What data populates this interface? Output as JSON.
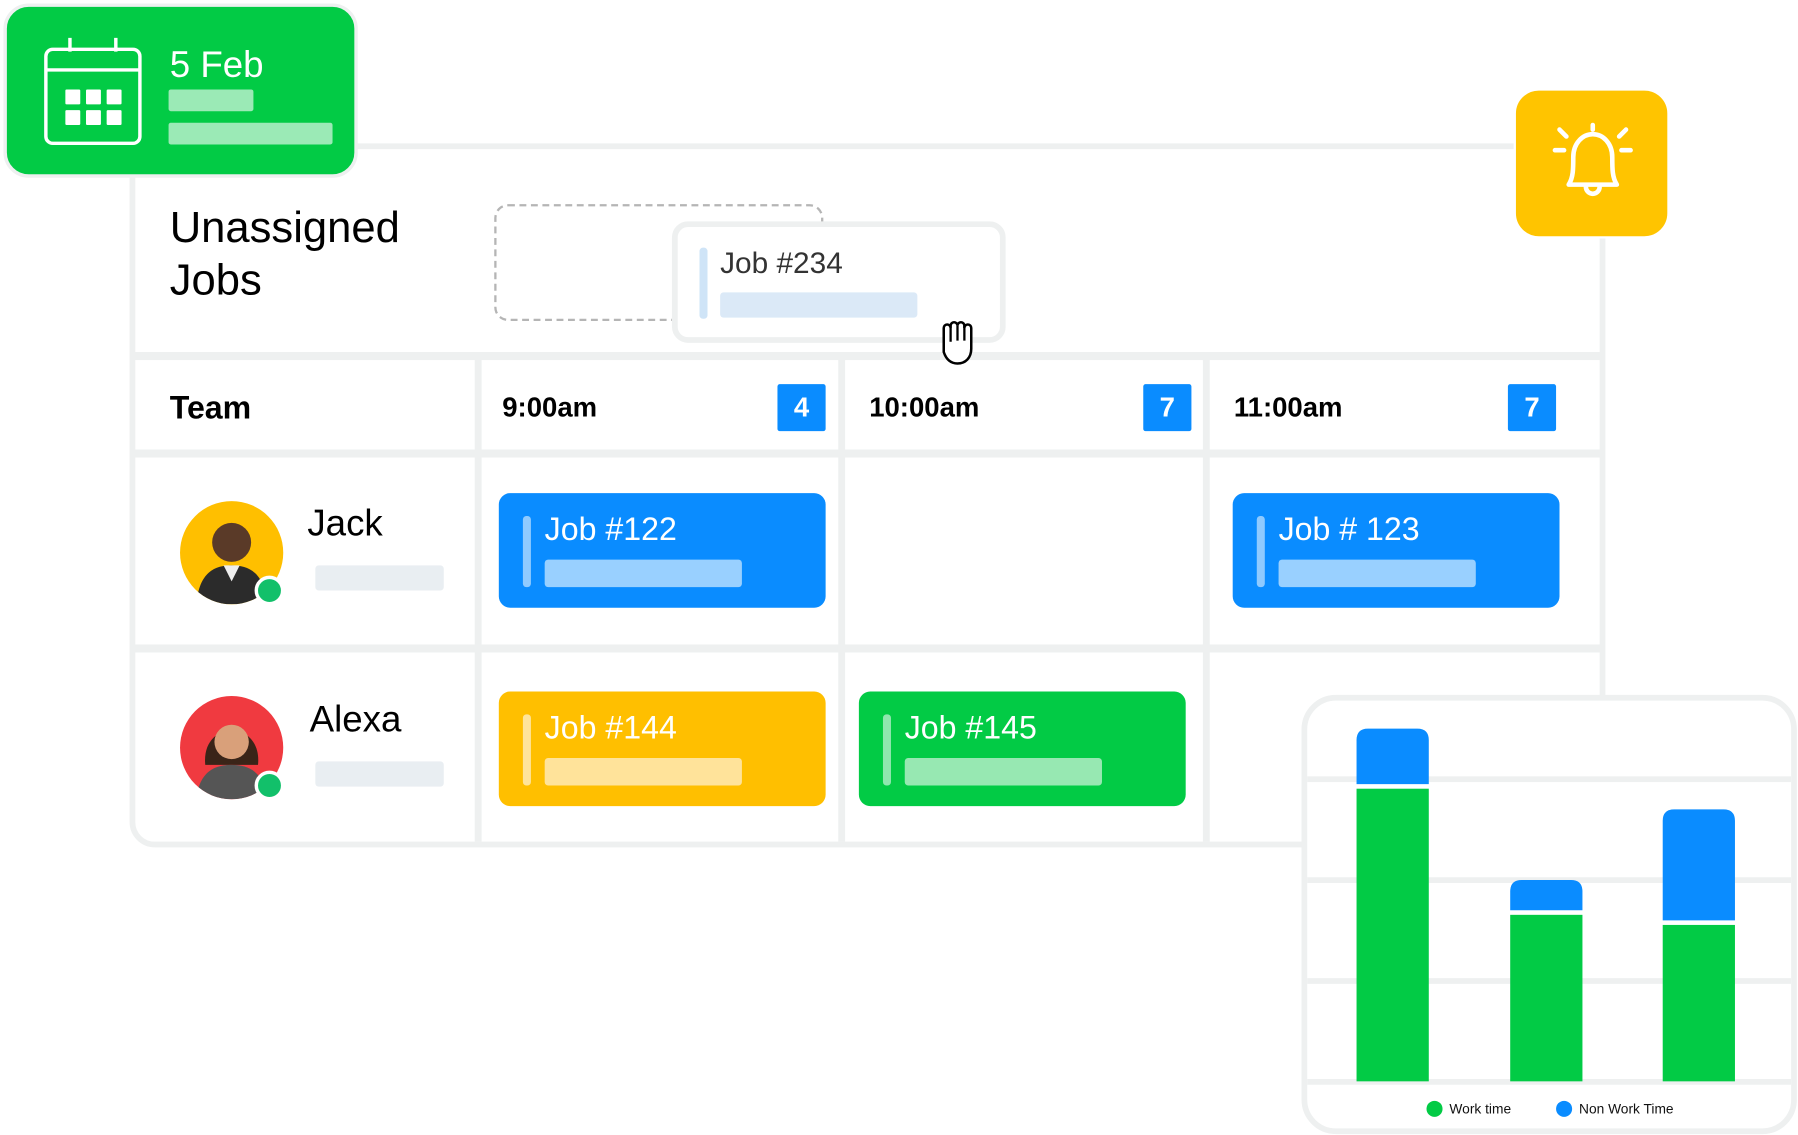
{
  "date_card": {
    "date": "5 Feb",
    "icon": "calendar-icon"
  },
  "notification": {
    "icon": "bell-icon"
  },
  "unassigned": {
    "title_line1": "Unassigned",
    "title_line2": "Jobs",
    "dragged_job": "Job #234",
    "cursor_icon": "grab-hand-icon"
  },
  "schedule": {
    "team_header": "Team",
    "slots": [
      {
        "time": "9:00am",
        "count": "4"
      },
      {
        "time": "10:00am",
        "count": "7"
      },
      {
        "time": "11:00am",
        "count": "7"
      }
    ],
    "members": [
      {
        "name": "Jack",
        "status": "online",
        "jobs": [
          {
            "slot": 0,
            "label": "Job #122",
            "color": "#0a8cff"
          },
          {
            "slot": 2,
            "label": "Job # 123",
            "color": "#0a8cff"
          }
        ]
      },
      {
        "name": "Alexa",
        "status": "online",
        "jobs": [
          {
            "slot": 0,
            "label": "Job #144",
            "color": "#ffbf00"
          },
          {
            "slot": 1,
            "label": "Job #145",
            "color": "#02cb45"
          }
        ]
      }
    ]
  },
  "colors": {
    "green": "#02cb45",
    "blue": "#0a8cff",
    "yellow": "#ffc400",
    "online": "#12c06a"
  },
  "chart_data": {
    "type": "bar",
    "stacked": true,
    "categories": [
      "",
      "",
      ""
    ],
    "series": [
      {
        "name": "Work time",
        "color": "#02cb45",
        "values": [
          2.9,
          1.65,
          1.55
        ]
      },
      {
        "name": "Non Work Time",
        "color": "#0a8cff",
        "values": [
          0.55,
          0.3,
          1.1
        ]
      }
    ],
    "ylim": [
      0,
      3.6
    ],
    "grid": true,
    "legend": "bottom"
  }
}
